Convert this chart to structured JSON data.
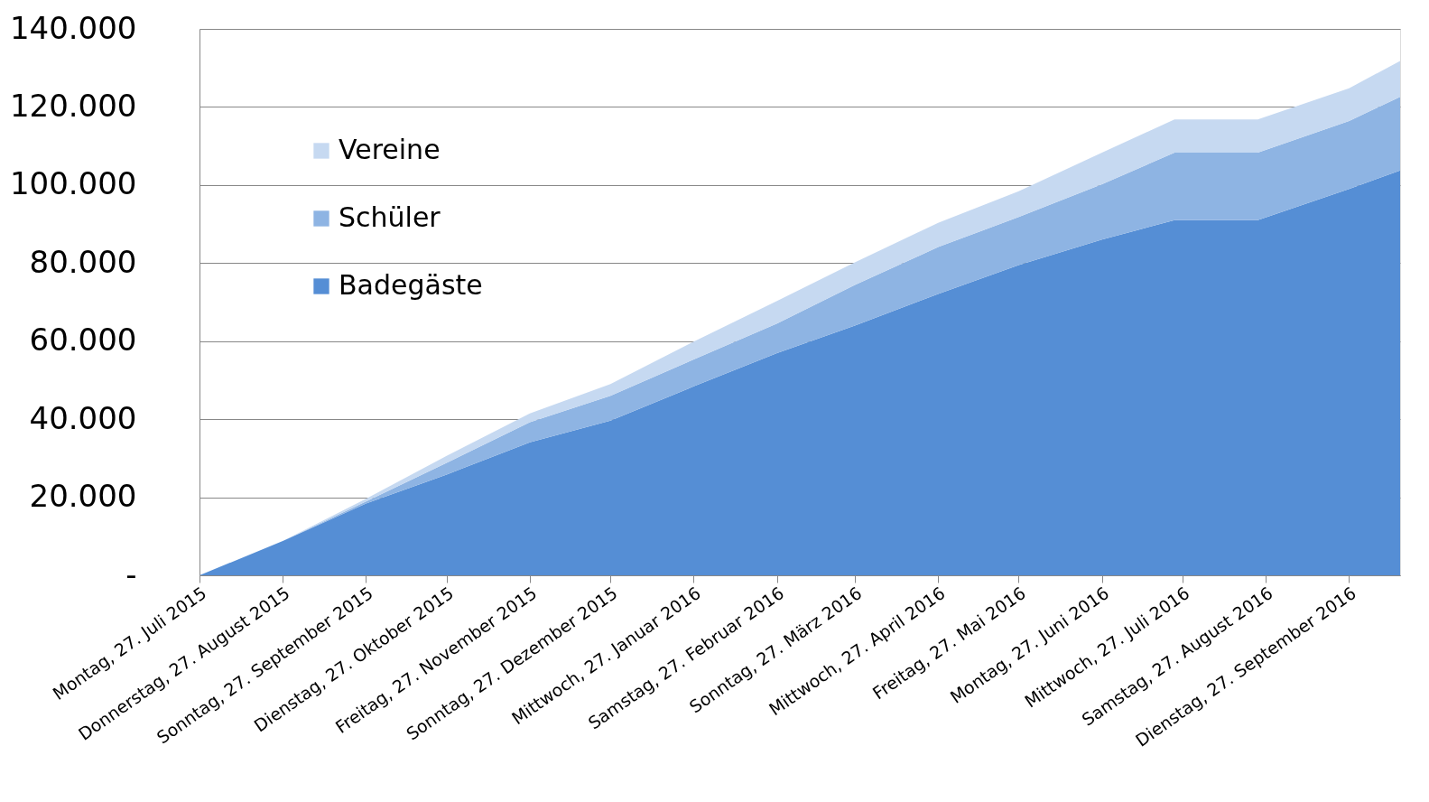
{
  "chart_data": {
    "type": "area",
    "stacked": true,
    "x": [
      "2015-07-27",
      "2015-08-27",
      "2015-09-27",
      "2015-10-27",
      "2015-11-27",
      "2015-12-27",
      "2016-01-27",
      "2016-02-27",
      "2016-03-27",
      "2016-04-27",
      "2016-05-27",
      "2016-06-27",
      "2016-07-24",
      "2016-08-24",
      "2016-09-27",
      "2016-10-16"
    ],
    "series": [
      {
        "name": "Badegäste",
        "color": "#558ed5",
        "values": [
          0,
          8800,
          18400,
          25800,
          34100,
          39600,
          48400,
          56900,
          64000,
          72100,
          79500,
          86000,
          91000,
          91000,
          99000,
          103700
        ]
      },
      {
        "name": "Schüler",
        "color": "#8eb4e3",
        "values": [
          0,
          0,
          500,
          3000,
          5100,
          6400,
          6900,
          7600,
          10400,
          12000,
          12300,
          14200,
          17300,
          17300,
          17400,
          18900
        ]
      },
      {
        "name": "Vereine",
        "color": "#c6d9f1",
        "values": [
          0,
          0,
          700,
          1800,
          2300,
          3000,
          4600,
          5800,
          5800,
          6200,
          6600,
          8100,
          8500,
          8500,
          8400,
          9200
        ]
      }
    ],
    "xlim": [
      "2015-07-27",
      "2016-10-16"
    ],
    "xticks": [
      {
        "value": "2015-07-27",
        "label": "Montag, 27. Juli 2015"
      },
      {
        "value": "2015-08-27",
        "label": "Donnerstag, 27. August 2015"
      },
      {
        "value": "2015-09-27",
        "label": "Sonntag, 27. September 2015"
      },
      {
        "value": "2015-10-27",
        "label": "Dienstag, 27. Oktober 2015"
      },
      {
        "value": "2015-11-27",
        "label": "Freitag, 27. November 2015"
      },
      {
        "value": "2015-12-27",
        "label": "Sonntag, 27. Dezember 2015"
      },
      {
        "value": "2016-01-27",
        "label": "Mittwoch, 27. Januar 2016"
      },
      {
        "value": "2016-02-27",
        "label": "Samstag, 27. Februar 2016"
      },
      {
        "value": "2016-03-27",
        "label": "Sonntag, 27. März 2016"
      },
      {
        "value": "2016-04-27",
        "label": "Mittwoch, 27. April 2016"
      },
      {
        "value": "2016-05-27",
        "label": "Freitag, 27. Mai 2016"
      },
      {
        "value": "2016-06-27",
        "label": "Montag, 27. Juni 2016"
      },
      {
        "value": "2016-07-27",
        "label": "Mittwoch, 27. Juli 2016"
      },
      {
        "value": "2016-08-27",
        "label": "Samstag, 27. August 2016"
      },
      {
        "value": "2016-09-27",
        "label": "Dienstag, 27. September 2016"
      }
    ],
    "ylim": [
      0,
      140000
    ],
    "yticks": [
      {
        "value": 0,
        "label": "-"
      },
      {
        "value": 20000,
        "label": "20.000"
      },
      {
        "value": 40000,
        "label": "40.000"
      },
      {
        "value": 60000,
        "label": "60.000"
      },
      {
        "value": 80000,
        "label": "80.000"
      },
      {
        "value": 100000,
        "label": "100.000"
      },
      {
        "value": 120000,
        "label": "120.000"
      },
      {
        "value": 140000,
        "label": "140.000"
      }
    ],
    "grid": "y",
    "legend": "top left"
  }
}
